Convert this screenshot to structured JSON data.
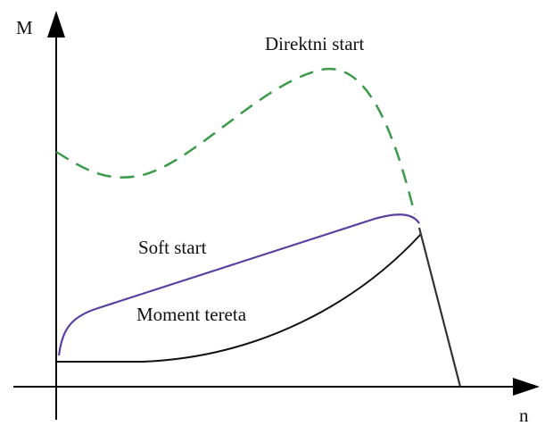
{
  "axes": {
    "y_label": "M",
    "x_label": "n"
  },
  "curves": [
    {
      "label": "Direktni start"
    },
    {
      "label": "Soft start"
    },
    {
      "label": "Moment tereta"
    }
  ]
}
